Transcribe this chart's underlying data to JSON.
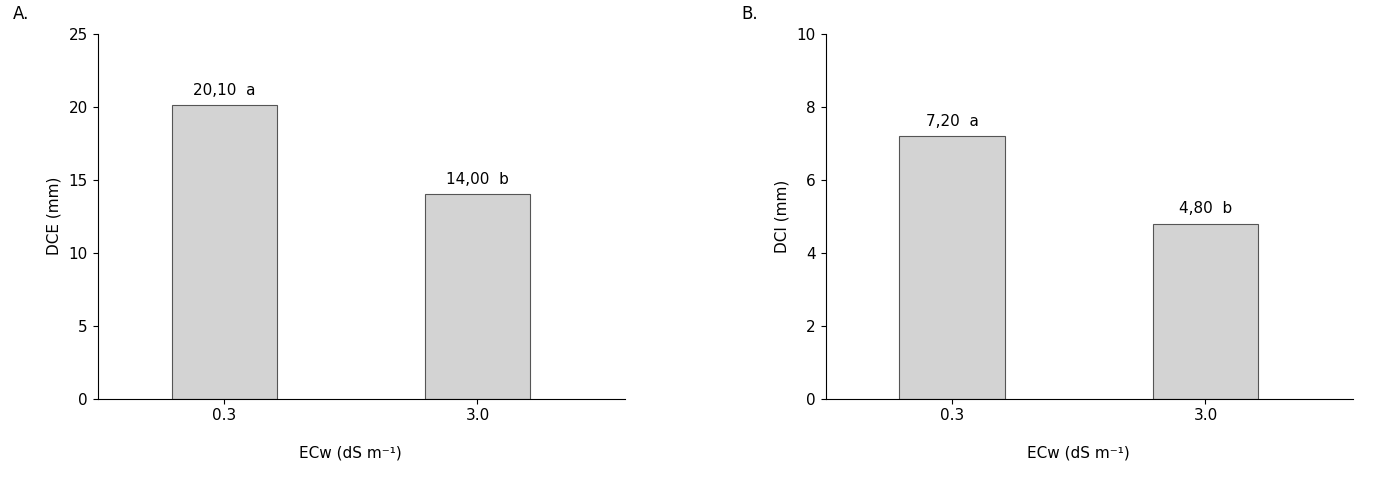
{
  "panel_A": {
    "label": "A.",
    "categories": [
      "0.3",
      "3.0"
    ],
    "values": [
      20.1,
      14.0
    ],
    "bar_labels": [
      "20,10",
      "14,00"
    ],
    "sig_labels": [
      "a",
      "b"
    ],
    "ylabel": "DCE (mm)",
    "xlabel": "ECw (dS m⁻¹)",
    "ylim": [
      0,
      25
    ],
    "yticks": [
      0,
      5,
      10,
      15,
      20,
      25
    ]
  },
  "panel_B": {
    "label": "B.",
    "categories": [
      "0.3",
      "3.0"
    ],
    "values": [
      7.2,
      4.8
    ],
    "bar_labels": [
      "7,20",
      "4,80"
    ],
    "sig_labels": [
      "a",
      "b"
    ],
    "ylabel": "DCI (mm)",
    "xlabel": "ECw (dS m⁻¹)",
    "ylim": [
      0,
      10
    ],
    "yticks": [
      0,
      2,
      4,
      6,
      8,
      10
    ]
  },
  "bar_color": "#d3d3d3",
  "bar_edgecolor": "#555555",
  "bar_width": 0.25,
  "x_positions": [
    0.3,
    0.9
  ],
  "xlim": [
    0.0,
    1.25
  ],
  "fig_width": 13.95,
  "fig_height": 4.86,
  "dpi": 100,
  "fontsize_ticks": 11,
  "fontsize_labels": 11,
  "fontsize_bar_label": 11,
  "fontsize_panel_label": 12
}
